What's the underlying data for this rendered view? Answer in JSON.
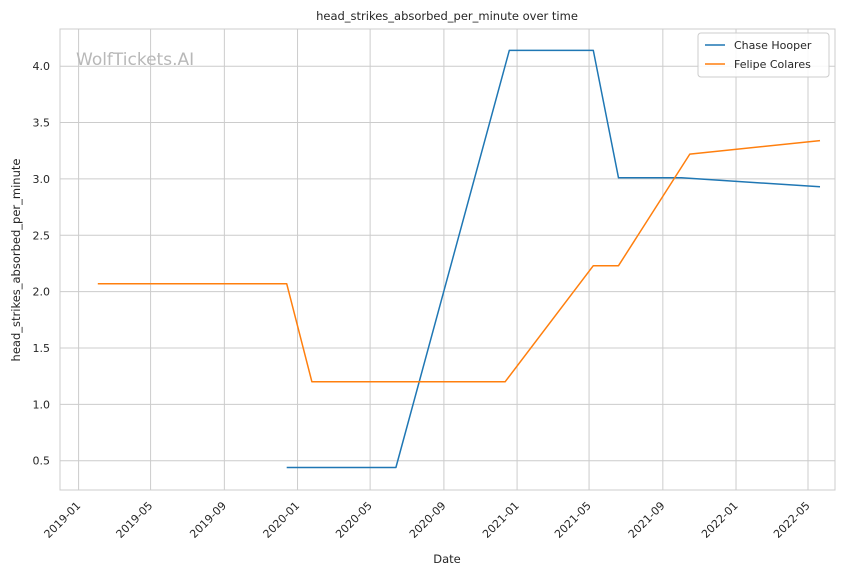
{
  "chart_data": {
    "type": "line",
    "title": "head_strikes_absorbed_per_minute over time",
    "xlabel": "Date",
    "ylabel": "head_strikes_absorbed_per_minute",
    "x_ticks": [
      "2019-01",
      "2019-05",
      "2019-09",
      "2020-01",
      "2020-05",
      "2020-09",
      "2021-01",
      "2021-05",
      "2021-09",
      "2022-01",
      "2022-05"
    ],
    "y_ticks": [
      "0.5",
      "1.0",
      "1.5",
      "2.0",
      "2.5",
      "3.0",
      "3.5",
      "4.0"
    ],
    "xlim": [
      "2018-12-01",
      "2022-06-15"
    ],
    "ylim": [
      0.24,
      4.33
    ],
    "grid": true,
    "legend_position": "top-right",
    "watermark": "WolfTickets.AI",
    "series": [
      {
        "name": "Chase Hooper",
        "color": "#1f77b4",
        "points": [
          {
            "x": "2019-12-14",
            "y": 0.44
          },
          {
            "x": "2020-06-13",
            "y": 0.44
          },
          {
            "x": "2020-12-19",
            "y": 4.14
          },
          {
            "x": "2021-05-08",
            "y": 4.14
          },
          {
            "x": "2021-06-19",
            "y": 3.01
          },
          {
            "x": "2021-10-02",
            "y": 3.01
          },
          {
            "x": "2022-05-21",
            "y": 2.93
          }
        ]
      },
      {
        "name": "Felipe Colares",
        "color": "#ff7f0e",
        "points": [
          {
            "x": "2019-02-02",
            "y": 2.07
          },
          {
            "x": "2019-12-14",
            "y": 2.07
          },
          {
            "x": "2020-01-25",
            "y": 1.2
          },
          {
            "x": "2020-12-12",
            "y": 1.2
          },
          {
            "x": "2021-05-08",
            "y": 2.23
          },
          {
            "x": "2021-06-19",
            "y": 2.23
          },
          {
            "x": "2021-10-16",
            "y": 3.22
          },
          {
            "x": "2022-05-21",
            "y": 3.34
          }
        ]
      }
    ]
  }
}
